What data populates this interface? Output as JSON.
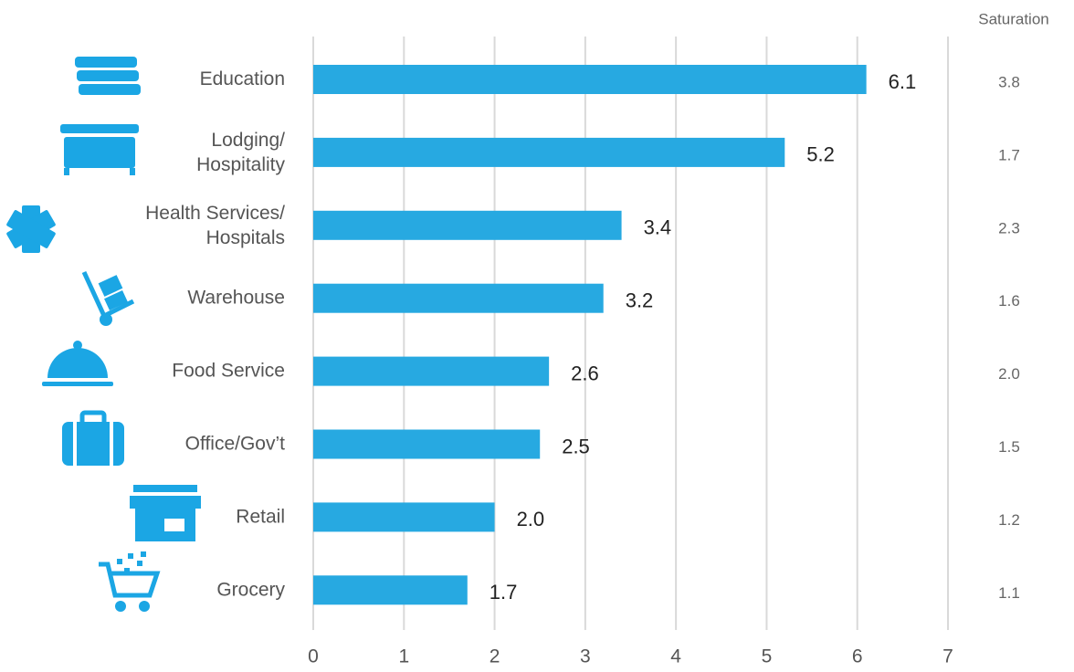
{
  "chart_data": {
    "type": "barh",
    "categories": [
      "Education",
      "Lodging/\nHospitality",
      "Health Services/\nHospitals",
      "Warehouse",
      "Food Service",
      "Office/Gov’t",
      "Retail",
      "Grocery"
    ],
    "values": [
      6.1,
      5.2,
      3.4,
      3.2,
      2.6,
      2.5,
      2.0,
      1.7
    ],
    "value_labels": [
      "6.1",
      "5.2",
      "3.4",
      "3.2",
      "2.6",
      "2.5",
      "2.0",
      "1.7"
    ],
    "color": "#27a9e1",
    "xlim": [
      0,
      7
    ],
    "xticks": [
      0,
      1,
      2,
      3,
      4,
      5,
      6,
      7
    ],
    "grid": true,
    "saturation": {
      "title": "Saturation",
      "values": [
        3.8,
        1.7,
        2.3,
        1.6,
        2.0,
        1.5,
        1.2,
        1.1
      ],
      "value_labels": [
        "3.8",
        "1.7",
        "2.3",
        "1.6",
        "2.0",
        "1.5",
        "1.2",
        "1.1"
      ]
    }
  }
}
